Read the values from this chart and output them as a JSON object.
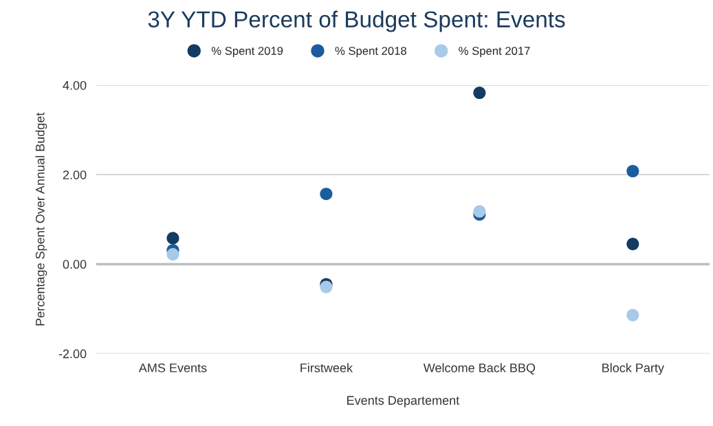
{
  "chart_data": {
    "type": "scatter",
    "title": "3Y YTD Percent of Budget Spent: Events",
    "xlabel": "Events Departement",
    "ylabel": "Percentage Spent Over Annual Budget",
    "categories": [
      "AMS Events",
      "Firstweek",
      "Welcome Back BBQ",
      "Block Party"
    ],
    "series": [
      {
        "name": "% Spent 2019",
        "color": "#133c63",
        "values": [
          0.58,
          -0.45,
          3.83,
          0.45
        ]
      },
      {
        "name": "% Spent 2018",
        "color": "#1b5c9e",
        "values": [
          0.31,
          1.57,
          1.11,
          2.08
        ]
      },
      {
        "name": "% Spent 2017",
        "color": "#a9c9e8",
        "values": [
          0.22,
          -0.51,
          1.18,
          -1.14
        ]
      }
    ],
    "ylim": [
      -2,
      4
    ],
    "yticks": [
      {
        "value": -2,
        "label": "-2.00"
      },
      {
        "value": 0,
        "label": "0.00"
      },
      {
        "value": 2,
        "label": "2.00"
      },
      {
        "value": 4,
        "label": "4.00"
      }
    ],
    "ref_lines": [
      {
        "axis": "y",
        "value": 0,
        "color": "#bdbdbd"
      }
    ],
    "grid": "y",
    "legend": "top",
    "marker": "circle"
  }
}
